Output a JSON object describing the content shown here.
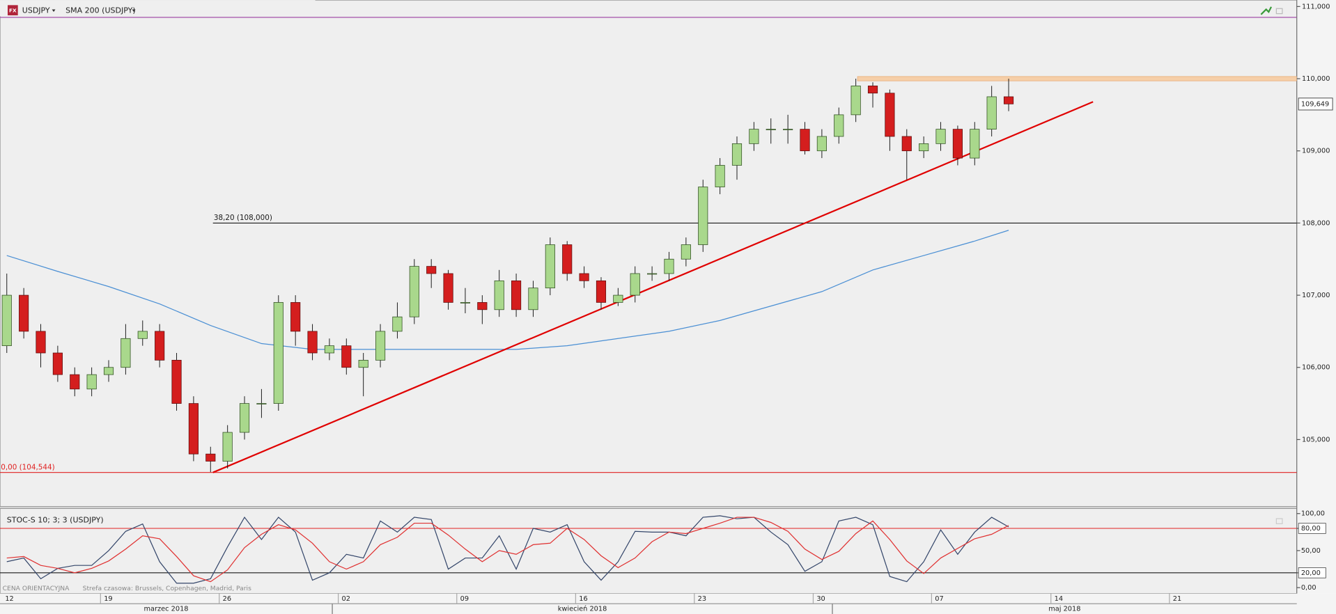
{
  "chart_data": [
    {
      "type": "candlestick",
      "title": "USDJPY",
      "symbol_icon": "FX",
      "x": [
        0,
        1,
        2,
        3,
        4,
        5,
        6,
        7,
        8,
        9,
        10,
        11,
        12,
        13,
        14,
        15,
        16,
        17,
        18,
        19,
        20,
        21,
        22,
        23,
        24,
        25,
        26,
        27,
        28,
        29,
        30,
        31,
        32,
        33,
        34,
        35,
        36,
        37,
        38,
        39,
        40,
        41,
        42,
        43,
        44,
        45,
        46,
        47,
        48,
        49,
        50,
        51,
        52,
        53,
        54,
        55,
        56,
        57,
        58,
        59
      ],
      "open": [
        106.3,
        107.0,
        106.5,
        106.2,
        105.9,
        105.7,
        105.9,
        106.0,
        106.4,
        106.5,
        106.1,
        105.5,
        104.8,
        104.7,
        105.1,
        105.5,
        105.5,
        106.9,
        106.5,
        106.2,
        106.3,
        106.0,
        106.1,
        106.5,
        106.7,
        107.4,
        107.3,
        106.9,
        106.9,
        106.8,
        107.2,
        106.8,
        107.1,
        107.7,
        107.3,
        107.2,
        106.9,
        107.0,
        107.3,
        107.3,
        107.5,
        107.7,
        108.5,
        108.8,
        109.1,
        109.3,
        109.3,
        109.3,
        109.0,
        109.2,
        109.5,
        109.9,
        109.8,
        109.2,
        109.0,
        109.1,
        109.3,
        108.9,
        109.3,
        109.75
      ],
      "high": [
        107.3,
        107.1,
        106.6,
        106.3,
        106.0,
        106.0,
        106.1,
        106.6,
        106.65,
        106.6,
        106.2,
        105.6,
        104.9,
        105.2,
        105.6,
        105.7,
        107.0,
        107.0,
        106.6,
        106.4,
        106.4,
        106.2,
        106.6,
        106.9,
        107.5,
        107.5,
        107.35,
        107.1,
        107.0,
        107.35,
        107.3,
        107.2,
        107.8,
        107.75,
        107.4,
        107.25,
        107.1,
        107.4,
        107.4,
        107.6,
        107.8,
        108.6,
        108.9,
        109.2,
        109.4,
        109.45,
        109.5,
        109.4,
        109.3,
        109.6,
        110.0,
        109.95,
        109.85,
        109.3,
        109.2,
        109.4,
        109.35,
        109.4,
        109.9,
        110.0
      ],
      "low": [
        106.2,
        106.4,
        106.0,
        105.8,
        105.6,
        105.6,
        105.8,
        105.9,
        106.3,
        106.0,
        105.4,
        104.7,
        104.55,
        104.6,
        105.0,
        105.3,
        105.4,
        106.3,
        106.1,
        106.1,
        105.9,
        105.6,
        106.0,
        106.4,
        106.6,
        107.1,
        106.8,
        106.75,
        106.6,
        106.7,
        106.7,
        106.7,
        107.0,
        107.2,
        107.1,
        106.8,
        106.85,
        106.9,
        107.2,
        107.2,
        107.4,
        107.6,
        108.4,
        108.6,
        109.0,
        109.1,
        109.1,
        108.95,
        108.9,
        109.1,
        109.4,
        109.6,
        109.0,
        108.6,
        108.9,
        109.0,
        108.8,
        108.8,
        109.2,
        109.55
      ],
      "close": [
        107.0,
        106.5,
        106.2,
        105.9,
        105.7,
        105.9,
        106.0,
        106.4,
        106.5,
        106.1,
        105.5,
        104.8,
        104.7,
        105.1,
        105.5,
        105.5,
        106.9,
        106.5,
        106.2,
        106.3,
        106.0,
        106.1,
        106.5,
        106.7,
        107.4,
        107.3,
        106.9,
        106.9,
        106.8,
        107.2,
        106.8,
        107.1,
        107.7,
        107.3,
        107.2,
        106.9,
        107.0,
        107.3,
        107.3,
        107.5,
        107.7,
        108.5,
        108.8,
        109.1,
        109.3,
        109.3,
        109.3,
        109.0,
        109.2,
        109.5,
        109.9,
        109.8,
        109.2,
        109.0,
        109.1,
        109.3,
        108.9,
        109.3,
        109.75,
        109.65
      ],
      "up_color": "#a9d88c",
      "down_color": "#d41e1e",
      "sma": {
        "name": "SMA 200 (USDJPY)",
        "color": "#4a8fd4",
        "x": [
          0,
          3,
          6,
          9,
          12,
          15,
          18,
          21,
          24,
          27,
          30,
          33,
          36,
          39,
          42,
          45,
          48,
          51,
          54,
          57,
          59
        ],
        "values": [
          107.55,
          107.33,
          107.12,
          106.88,
          106.58,
          106.33,
          106.25,
          106.25,
          106.25,
          106.25,
          106.25,
          106.3,
          106.4,
          106.5,
          106.65,
          106.85,
          107.05,
          107.35,
          107.55,
          107.75,
          107.9
        ]
      },
      "trendline": {
        "color": "#e00000",
        "x": [
          12.14,
          63.97
        ],
        "values": [
          104.544,
          109.68
        ]
      },
      "levels": [
        {
          "value": 108,
          "label": "38,20 (108,000)",
          "color": "#1a1a1a",
          "x_start": 12.14
        },
        {
          "value": 104.544,
          "label": "0,00 (104,544)",
          "color": "#e02020"
        },
        {
          "value": 110.85,
          "color": "#9b3fa0"
        }
      ],
      "zone": {
        "from": 109.97,
        "to": 110.03,
        "x_start": 50.1,
        "color": "#f6cfa8"
      },
      "last_price": {
        "value": 109.649,
        "label": "109,649"
      },
      "xlim": [
        -0.4,
        75.97
      ],
      "xticks": [
        {
          "value": -1.47,
          "label": "12"
        },
        {
          "value": 5.52,
          "label": "19"
        },
        {
          "value": 12.51,
          "label": "26"
        },
        {
          "value": 19.52,
          "label": "02"
        },
        {
          "value": 26.5,
          "label": "09"
        },
        {
          "value": 33.5,
          "label": "16"
        },
        {
          "value": 40.49,
          "label": "23"
        },
        {
          "value": 47.49,
          "label": "30"
        },
        {
          "value": 54.46,
          "label": "07"
        },
        {
          "value": 61.49,
          "label": "14"
        },
        {
          "value": 68.47,
          "label": "21"
        }
      ],
      "months": [
        "marzec 2018",
        "kwiecień 2018",
        "maj 2018"
      ],
      "month_starts": [
        19.17,
        48.62
      ],
      "ylim": [
        104.07,
        111.09
      ],
      "yticks": [
        {
          "value": 105,
          "label": "105,000"
        },
        {
          "value": 106,
          "label": "106,000"
        },
        {
          "value": 107,
          "label": "107,000"
        },
        {
          "value": 108,
          "label": "108,000"
        },
        {
          "value": 109,
          "label": "109,000"
        },
        {
          "value": 110,
          "label": "110,000"
        },
        {
          "value": 111,
          "label": "111,000"
        }
      ]
    },
    {
      "type": "stochastic",
      "title": "STOC-S 10; 3; 3 (USDJPY)",
      "series": [
        {
          "color": "#34466a",
          "values": [
            35,
            40,
            12,
            26,
            30,
            30,
            50,
            76,
            86,
            35,
            6,
            6,
            12,
            55,
            95,
            65,
            95,
            75,
            10,
            20,
            45,
            40,
            90,
            75,
            95,
            92,
            25,
            40,
            40,
            70,
            25,
            80,
            75,
            85,
            35,
            10,
            35,
            76,
            75,
            75,
            70,
            95,
            97,
            93,
            95,
            75,
            58,
            22,
            35,
            90,
            95,
            85,
            15,
            8,
            35,
            78,
            45,
            75,
            95,
            82
          ]
        },
        {
          "color": "#e03030",
          "values": [
            40,
            42,
            30,
            26,
            20,
            26,
            36,
            52,
            70,
            66,
            42,
            16,
            8,
            24,
            54,
            72,
            85,
            78,
            60,
            35,
            25,
            35,
            58,
            68,
            87,
            87,
            71,
            52,
            35,
            50,
            45,
            58,
            60,
            80,
            65,
            43,
            27,
            40,
            62,
            75,
            73,
            80,
            87,
            95,
            95,
            88,
            76,
            52,
            38,
            49,
            73,
            90,
            65,
            36,
            19,
            40,
            53,
            66,
            72,
            84
          ]
        }
      ],
      "levels": [
        {
          "value": 80,
          "color": "#e02020"
        },
        {
          "value": 20,
          "color": "#1a1a1a"
        }
      ],
      "ylim": [
        -8,
        107
      ],
      "yticks": [
        {
          "value": 0,
          "label": "0,00"
        },
        {
          "value": 20,
          "label": "20,00"
        },
        {
          "value": 50,
          "label": "50,00"
        },
        {
          "value": 80,
          "label": "80,00"
        },
        {
          "value": 100,
          "label": "100,00"
        }
      ]
    }
  ],
  "status": {
    "note": "CENA ORIENTACYJNA",
    "timezone": "Strefa czasowa: Brussels, Copenhagen, Madrid, Paris"
  }
}
